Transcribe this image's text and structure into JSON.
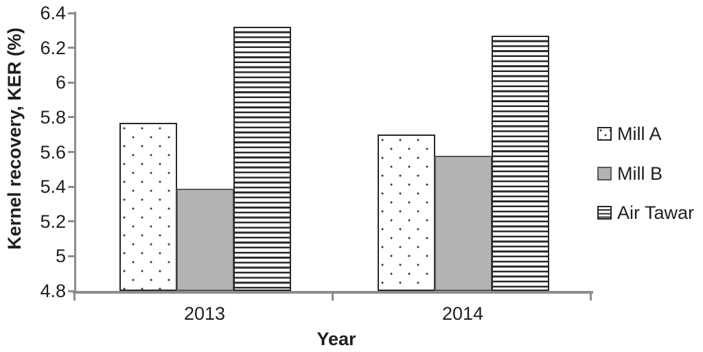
{
  "chart_data": {
    "type": "bar",
    "title": "",
    "xlabel": "Year",
    "ylabel": "Kernel recovery, KER (%)",
    "categories": [
      "2013",
      "2014"
    ],
    "series": [
      {
        "name": "Mill A",
        "pattern": "dots",
        "values": [
          5.77,
          5.7
        ]
      },
      {
        "name": "Mill B",
        "pattern": "solid",
        "values": [
          5.39,
          5.58
        ]
      },
      {
        "name": "Air Tawar",
        "pattern": "hlines",
        "values": [
          6.32,
          6.27
        ]
      }
    ],
    "ylim": [
      4.8,
      6.4
    ],
    "ytick_step": 0.2,
    "yticks": [
      "6.4",
      "6.2",
      "6",
      "5.8",
      "5.6",
      "5.4",
      "5.2",
      "5",
      "4.8"
    ],
    "grid": false,
    "legend_position": "right",
    "legend_entries": [
      "Mill A",
      "Mill B",
      "Air Tawar"
    ]
  },
  "colors": {
    "axis": "#8c8c8c",
    "text": "#1f1f1f",
    "bar_border_dark": "#262626",
    "bar_gray_fill": "#b3b3b3",
    "bar_gray_border": "#595959",
    "background": "#ffffff"
  }
}
